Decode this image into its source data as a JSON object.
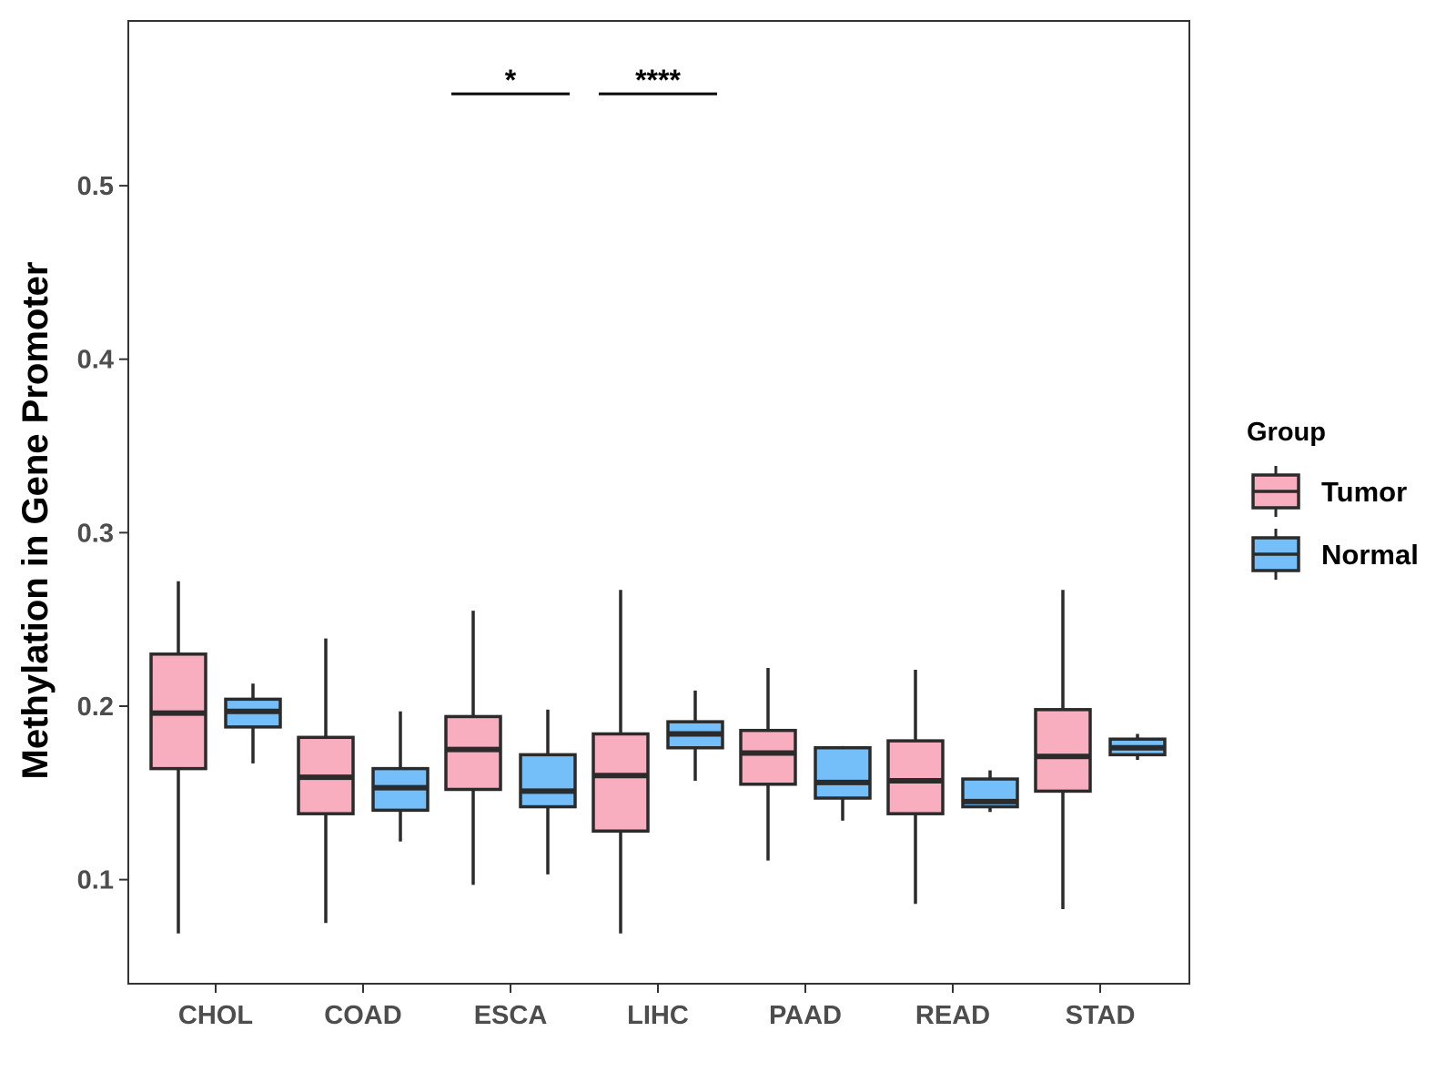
{
  "chart_data": {
    "type": "boxplot",
    "title": "",
    "xlabel": "",
    "ylabel": "Methylation in Gene Promoter",
    "ylim": [
      0.04,
      0.595
    ],
    "yticks": [
      "0.1",
      "0.2",
      "0.3",
      "0.4",
      "0.5"
    ],
    "categories": [
      "CHOL",
      "COAD",
      "ESCA",
      "LIHC",
      "PAAD",
      "READ",
      "STAD"
    ],
    "legend": {
      "title": "Group",
      "position": "right",
      "entries": [
        {
          "name": "Tumor",
          "color": "#f9aec0"
        },
        {
          "name": "Normal",
          "color": "#74bff9"
        }
      ]
    },
    "series": [
      {
        "name": "Tumor",
        "color": "#f9aec0",
        "boxes": [
          {
            "min": 0.069,
            "q1": 0.164,
            "median": 0.196,
            "q3": 0.23,
            "max": 0.272
          },
          {
            "min": 0.075,
            "q1": 0.138,
            "median": 0.159,
            "q3": 0.182,
            "max": 0.239
          },
          {
            "min": 0.097,
            "q1": 0.152,
            "median": 0.175,
            "q3": 0.194,
            "max": 0.255
          },
          {
            "min": 0.069,
            "q1": 0.128,
            "median": 0.16,
            "q3": 0.184,
            "max": 0.267
          },
          {
            "min": 0.111,
            "q1": 0.155,
            "median": 0.173,
            "q3": 0.186,
            "max": 0.222
          },
          {
            "min": 0.086,
            "q1": 0.138,
            "median": 0.157,
            "q3": 0.18,
            "max": 0.221
          },
          {
            "min": 0.083,
            "q1": 0.151,
            "median": 0.171,
            "q3": 0.198,
            "max": 0.267
          }
        ]
      },
      {
        "name": "Normal",
        "color": "#74bff9",
        "boxes": [
          {
            "min": 0.167,
            "q1": 0.188,
            "median": 0.197,
            "q3": 0.204,
            "max": 0.213
          },
          {
            "min": 0.122,
            "q1": 0.14,
            "median": 0.153,
            "q3": 0.164,
            "max": 0.197
          },
          {
            "min": 0.103,
            "q1": 0.142,
            "median": 0.151,
            "q3": 0.172,
            "max": 0.198
          },
          {
            "min": 0.157,
            "q1": 0.176,
            "median": 0.184,
            "q3": 0.191,
            "max": 0.209
          },
          {
            "min": 0.134,
            "q1": 0.147,
            "median": 0.156,
            "q3": 0.176,
            "max": 0.177
          },
          {
            "min": 0.139,
            "q1": 0.142,
            "median": 0.145,
            "q3": 0.158,
            "max": 0.163
          },
          {
            "min": 0.169,
            "q1": 0.172,
            "median": 0.176,
            "q3": 0.181,
            "max": 0.184
          }
        ]
      }
    ],
    "annotations": [
      {
        "category": "ESCA",
        "label": "*",
        "y": 0.553
      },
      {
        "category": "LIHC",
        "label": "****",
        "y": 0.553
      }
    ]
  }
}
